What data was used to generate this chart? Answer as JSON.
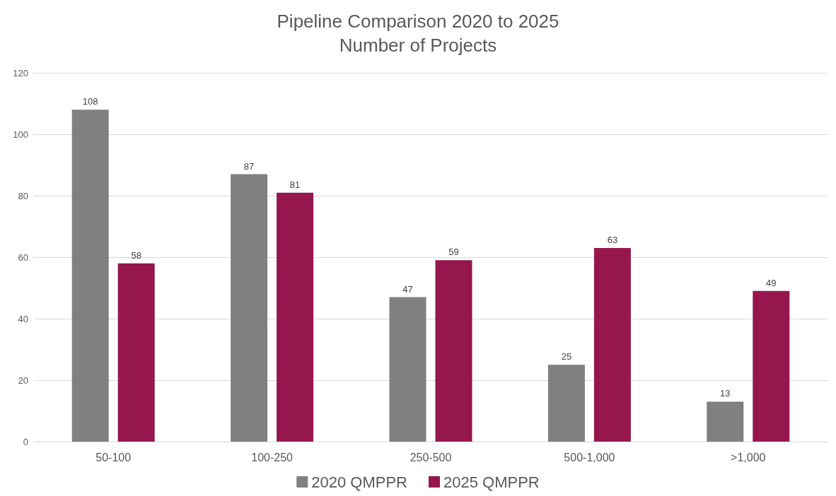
{
  "chart_data": {
    "type": "bar",
    "title": "Pipeline Comparison 2020 to 2025",
    "subtitle": "Number of Projects",
    "categories": [
      "50-100",
      "100-250",
      "250-500",
      "500-1,000",
      ">1,000"
    ],
    "series": [
      {
        "name": "2020 QMPPR",
        "color": "#808080",
        "values": [
          108,
          87,
          47,
          25,
          13
        ]
      },
      {
        "name": "2025 QMPPR",
        "color": "#96174e",
        "values": [
          58,
          81,
          59,
          63,
          49
        ]
      }
    ],
    "ylim": [
      0,
      120
    ],
    "yticks": [
      0,
      20,
      40,
      60,
      80,
      100,
      120
    ],
    "grid": "y",
    "legend": "bottom",
    "data_labels": true
  }
}
